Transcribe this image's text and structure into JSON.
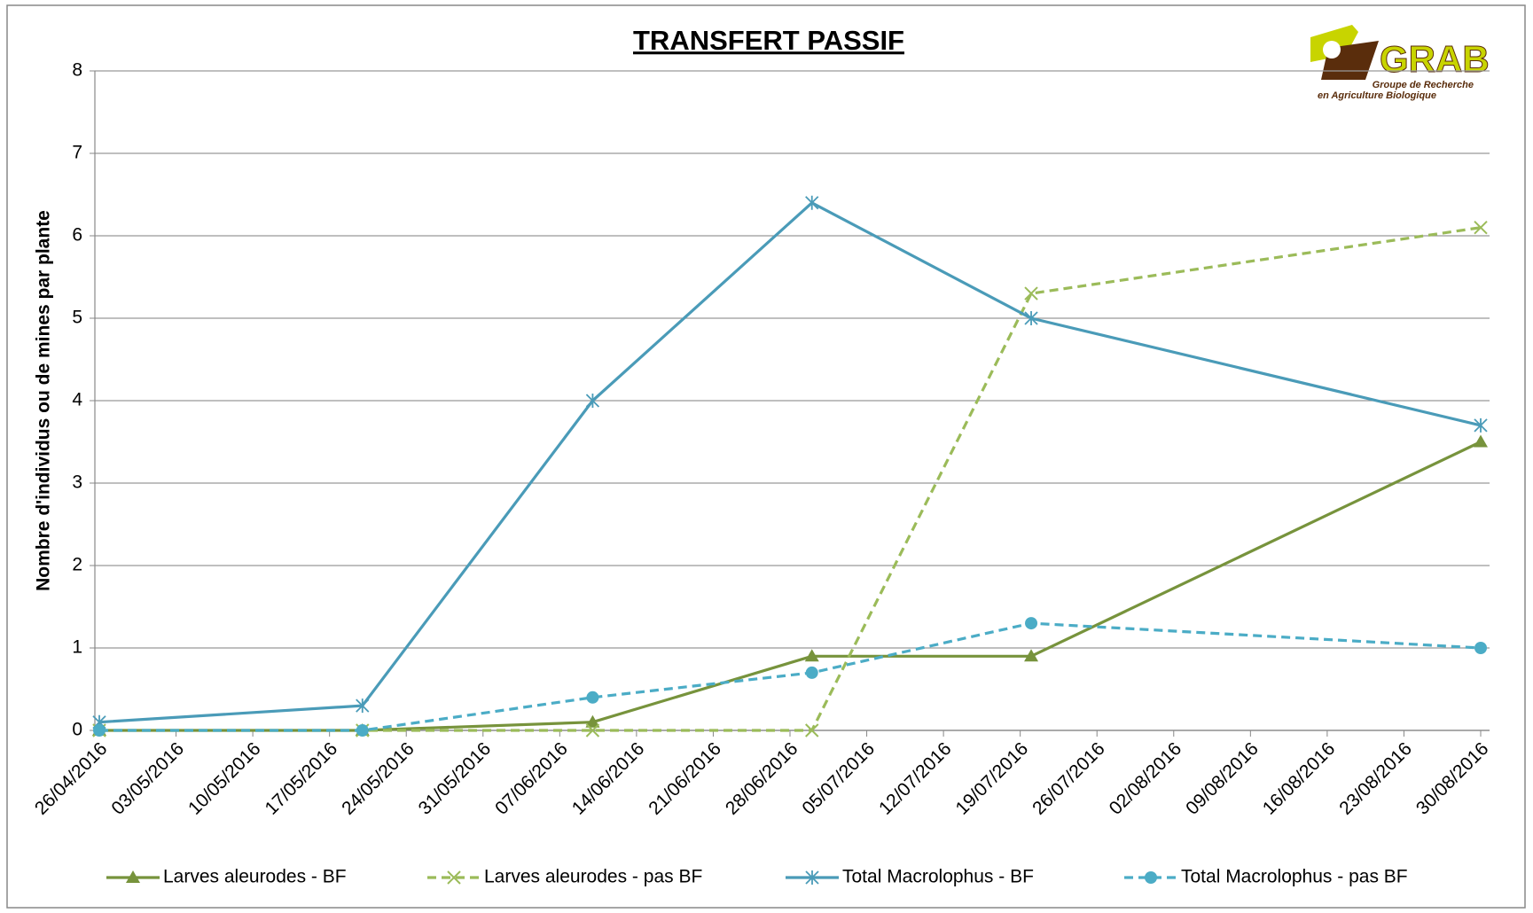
{
  "chart_data": {
    "type": "line",
    "title": "TRANSFERT PASSIF",
    "y_label": "Nombre d'individus ou de mines par plante",
    "logo": {
      "name": "GRAB",
      "line1": "Groupe de Recherche",
      "line2": "en Agriculture Biologique"
    },
    "x": [
      "26/04/2016",
      "20/05/2016",
      "10/06/2016",
      "30/06/2016",
      "20/07/2016",
      "30/08/2016"
    ],
    "xlim": [
      "26/04/2016",
      "30/08/2016"
    ],
    "xticks": [
      "26/04/2016",
      "03/05/2016",
      "10/05/2016",
      "17/05/2016",
      "24/05/2016",
      "31/05/2016",
      "07/06/2016",
      "14/06/2016",
      "21/06/2016",
      "28/06/2016",
      "05/07/2016",
      "12/07/2016",
      "19/07/2016",
      "26/07/2016",
      "02/08/2016",
      "09/08/2016",
      "16/08/2016",
      "23/08/2016",
      "30/08/2016"
    ],
    "ylim": [
      0,
      8
    ],
    "yticks": [
      0,
      1,
      2,
      3,
      4,
      5,
      6,
      7,
      8
    ],
    "grid": true,
    "legend": "bottom",
    "series": [
      {
        "name": "Larves aleurodes - BF",
        "color": "#77933c",
        "dash": false,
        "marker": "triangle",
        "values": [
          0,
          0,
          0.1,
          0.9,
          0.9,
          3.5
        ]
      },
      {
        "name": "Larves aleurodes - pas BF",
        "color": "#9bbb59",
        "dash": true,
        "marker": "x",
        "values": [
          0,
          0,
          0,
          0,
          5.3,
          6.1
        ]
      },
      {
        "name": "Total Macrolophus - BF",
        "color": "#4a9bb8",
        "dash": false,
        "marker": "star",
        "values": [
          0.1,
          0.3,
          4.0,
          6.4,
          5.0,
          3.7
        ]
      },
      {
        "name": "Total Macrolophus - pas BF",
        "color": "#4bacc6",
        "dash": true,
        "marker": "circle",
        "values": [
          0,
          0,
          0.4,
          0.7,
          1.3,
          1.0
        ]
      }
    ]
  }
}
